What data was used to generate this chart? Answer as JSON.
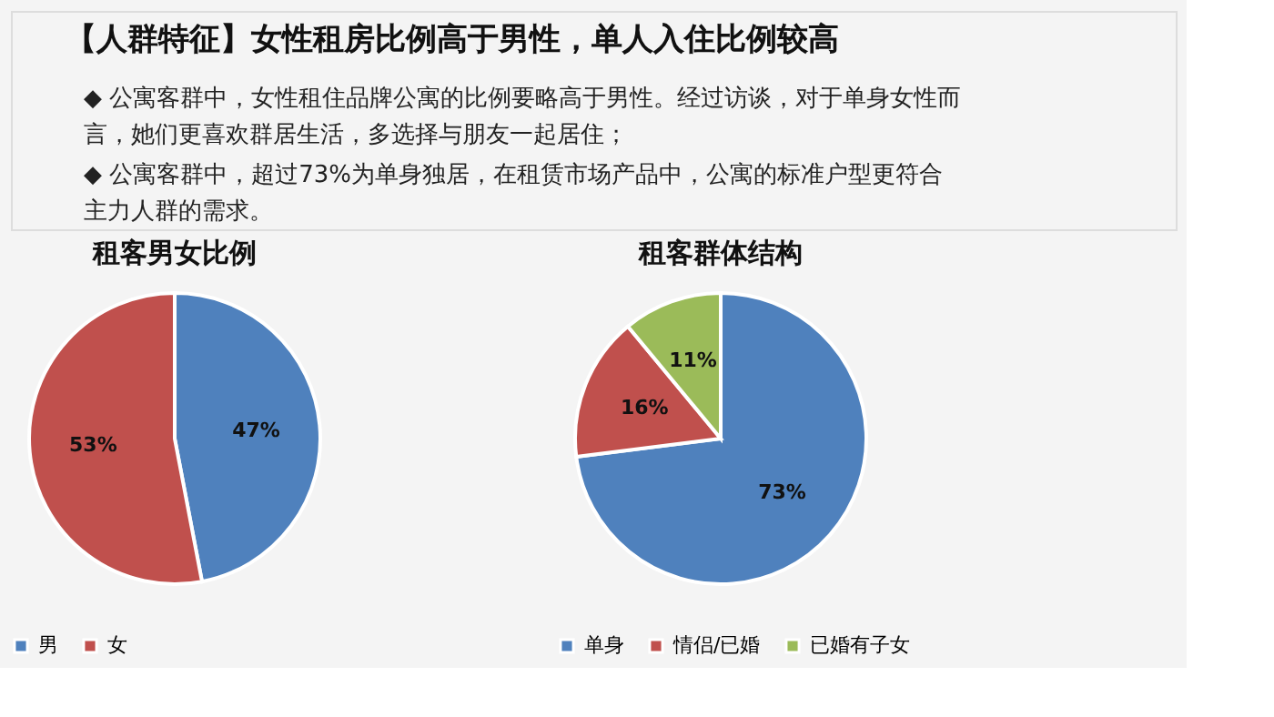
{
  "chart_data": [
    {
      "type": "other",
      "title": "【人群特征】女性租房比例高于男性，单人入住比例较高",
      "annotations": [
        "◆ 公寓客群中，女性租住品牌公寓的比例要略高于男性。经过访谈，对于单身女性而言，她们更喜欢群居生活，多选择与朋友一起居住；",
        "◆ 公寓客群中，超过73%为单身独居，在租赁市场产品中，公寓的标准户型更符合主力人群的需求。"
      ]
    },
    {
      "type": "pie",
      "title": "租客男女比例",
      "categories": [
        "男",
        "女"
      ],
      "values": [
        47,
        53
      ],
      "colors": [
        "#4f81bd",
        "#c0504d"
      ],
      "value_labels": [
        "47%",
        "53%"
      ],
      "legend": "bottom"
    },
    {
      "type": "pie",
      "title": "租客群体结构",
      "categories": [
        "单身",
        "情侣/已婚",
        "已婚有子女"
      ],
      "values": [
        73,
        16,
        11
      ],
      "colors": [
        "#4f81bd",
        "#c0504d",
        "#9bbb59"
      ],
      "value_labels": [
        "73%",
        "16%",
        "11%"
      ],
      "legend": "bottom"
    }
  ]
}
